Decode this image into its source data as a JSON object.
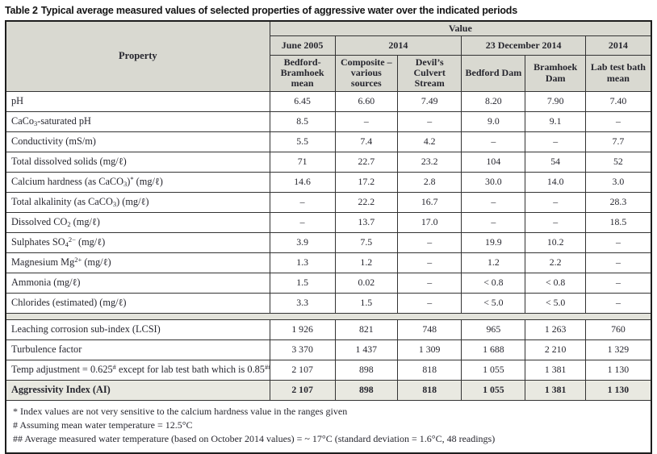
{
  "title": {
    "label": "Table 2",
    "text": "Typical average measured values of selected properties of aggressive water over the indicated periods"
  },
  "colors": {
    "header_bg": "#d9d9d1",
    "band_bg": "#e3e3db",
    "highlight_bg": "#e9e9e1",
    "border": "#333333",
    "text": "#26262e"
  },
  "table": {
    "corner_header": "Property",
    "value_header": "Value",
    "period_headers": [
      {
        "label": "June 2005",
        "span": 1
      },
      {
        "label": "2014",
        "span": 2
      },
      {
        "label": "23 December 2014",
        "span": 2
      },
      {
        "label": "2014",
        "span": 1
      }
    ],
    "source_headers": [
      "Bedford-Bramhoek mean",
      "Composite – various sources",
      "Devil’s Culvert Stream",
      "Bedford Dam",
      "Bramhoek Dam",
      "Lab test bath mean"
    ],
    "rows": [
      {
        "property": "pH",
        "values": [
          "6.45",
          "6.60",
          "7.49",
          "8.20",
          "7.90",
          "7.40"
        ]
      },
      {
        "property": "CaCo{3}-saturated pH",
        "values": [
          "8.5",
          "–",
          "–",
          "9.0",
          "9.1",
          "–"
        ]
      },
      {
        "property": "Conductivity (mS/m)",
        "values": [
          "5.5",
          "7.4",
          "4.2",
          "–",
          "–",
          "7.7"
        ]
      },
      {
        "property": "Total dissolved solids (mg/ℓ)",
        "values": [
          "71",
          "22.7",
          "23.2",
          "104",
          "54",
          "52"
        ]
      },
      {
        "property": "Calcium hardness (as CaCO{3})[*] (mg/ℓ)",
        "values": [
          "14.6",
          "17.2",
          "2.8",
          "30.0",
          "14.0",
          "3.0"
        ]
      },
      {
        "property": "Total alkalinity (as CaCO{3}) (mg/ℓ)",
        "values": [
          "–",
          "22.2",
          "16.7",
          "–",
          "–",
          "28.3"
        ]
      },
      {
        "property": "Dissolved CO{2} (mg/ℓ)",
        "values": [
          "–",
          "13.7",
          "17.0",
          "–",
          "–",
          "18.5"
        ]
      },
      {
        "property": "Sulphates SO{4}[2−] (mg/ℓ)",
        "values": [
          "3.9",
          "7.5",
          "–",
          "19.9",
          "10.2",
          "–"
        ]
      },
      {
        "property": "Magnesium Mg[2+] (mg/ℓ)",
        "values": [
          "1.3",
          "1.2",
          "–",
          "1.2",
          "2.2",
          "–"
        ]
      },
      {
        "property": "Ammonia (mg/ℓ)",
        "values": [
          "1.5",
          "0.02",
          "–",
          "< 0.8",
          "< 0.8",
          "–"
        ]
      },
      {
        "property": "Chlorides (estimated) (mg/ℓ)",
        "values": [
          "3.3",
          "1.5",
          "–",
          "< 5.0",
          "< 5.0",
          "–"
        ]
      }
    ],
    "summary_rows": [
      {
        "property": "Leaching corrosion sub-index (LCSI)",
        "values": [
          "1 926",
          "821",
          "748",
          "965",
          "1 263",
          "760"
        ]
      },
      {
        "property": "Turbulence factor",
        "values": [
          "3 370",
          "1 437",
          "1 309",
          "1 688",
          "2 210",
          "1 329"
        ]
      },
      {
        "property": "Temp adjustment = 0.625[#] except for lab test bath which is 0.85[##]",
        "values": [
          "2 107",
          "898",
          "818",
          "1 055",
          "1 381",
          "1 130"
        ]
      },
      {
        "property": "Aggressivity Index (AI)",
        "values": [
          "2 107",
          "898",
          "818",
          "1 055",
          "1 381",
          "1 130"
        ],
        "emphasis": true
      }
    ],
    "footnotes": [
      "* Index values are not very sensitive to the calcium hardness value in the ranges given",
      "# Assuming mean water temperature = 12.5°C",
      "## Average measured water temperature (based on October 2014 values) = ~ 17°C (standard deviation = 1.6°C, 48 readings)"
    ]
  }
}
